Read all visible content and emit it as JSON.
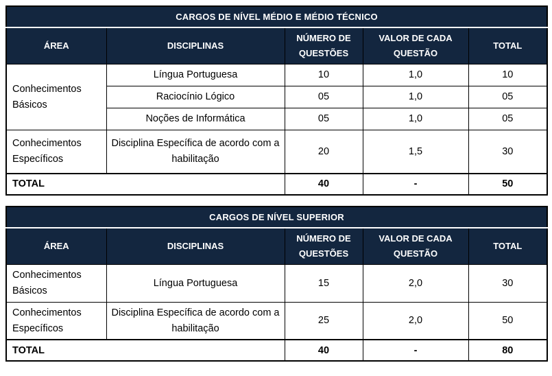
{
  "colors": {
    "header_bg": "#13263f",
    "header_text": "#ffffff",
    "body_text": "#000000",
    "border": "#000000",
    "page_bg": "#ffffff"
  },
  "tables": [
    {
      "title": "CARGOS DE NÍVEL MÉDIO E MÉDIO TÉCNICO",
      "columns": [
        "ÁREA",
        "DISCIPLINAS",
        "NÚMERO DE QUESTÕES",
        "VALOR DE CADA QUESTÃO",
        "TOTAL"
      ],
      "rows": [
        {
          "area": "Conhecimentos Básicos",
          "disciplina": "Língua Portuguesa",
          "num_questoes": "10",
          "valor_questao": "1,0",
          "total": "10"
        },
        {
          "disciplina": "Raciocínio Lógico",
          "num_questoes": "05",
          "valor_questao": "1,0",
          "total": "05"
        },
        {
          "disciplina": "Noções de Informática",
          "num_questoes": "05",
          "valor_questao": "1,0",
          "total": "05"
        },
        {
          "area": "Conhecimentos Específicos",
          "disciplina": "Disciplina Específica de acordo com a habilitação",
          "num_questoes": "20",
          "valor_questao": "1,5",
          "total": "30"
        }
      ],
      "total_row": {
        "label": "TOTAL",
        "num_questoes": "40",
        "valor_questao": "-",
        "total": "50"
      }
    },
    {
      "title": "CARGOS DE NÍVEL SUPERIOR",
      "columns": [
        "ÁREA",
        "DISCIPLINAS",
        "NÚMERO DE QUESTÕES",
        "VALOR DE CADA QUESTÃO",
        "TOTAL"
      ],
      "rows": [
        {
          "area": "Conhecimentos Básicos",
          "disciplina": "Língua Portuguesa",
          "num_questoes": "15",
          "valor_questao": "2,0",
          "total": "30"
        },
        {
          "area": "Conhecimentos Específicos",
          "disciplina": "Disciplina Específica de acordo com a habilitação",
          "num_questoes": "25",
          "valor_questao": "2,0",
          "total": "50"
        }
      ],
      "total_row": {
        "label": "TOTAL",
        "num_questoes": "40",
        "valor_questao": "-",
        "total": "80"
      }
    }
  ]
}
